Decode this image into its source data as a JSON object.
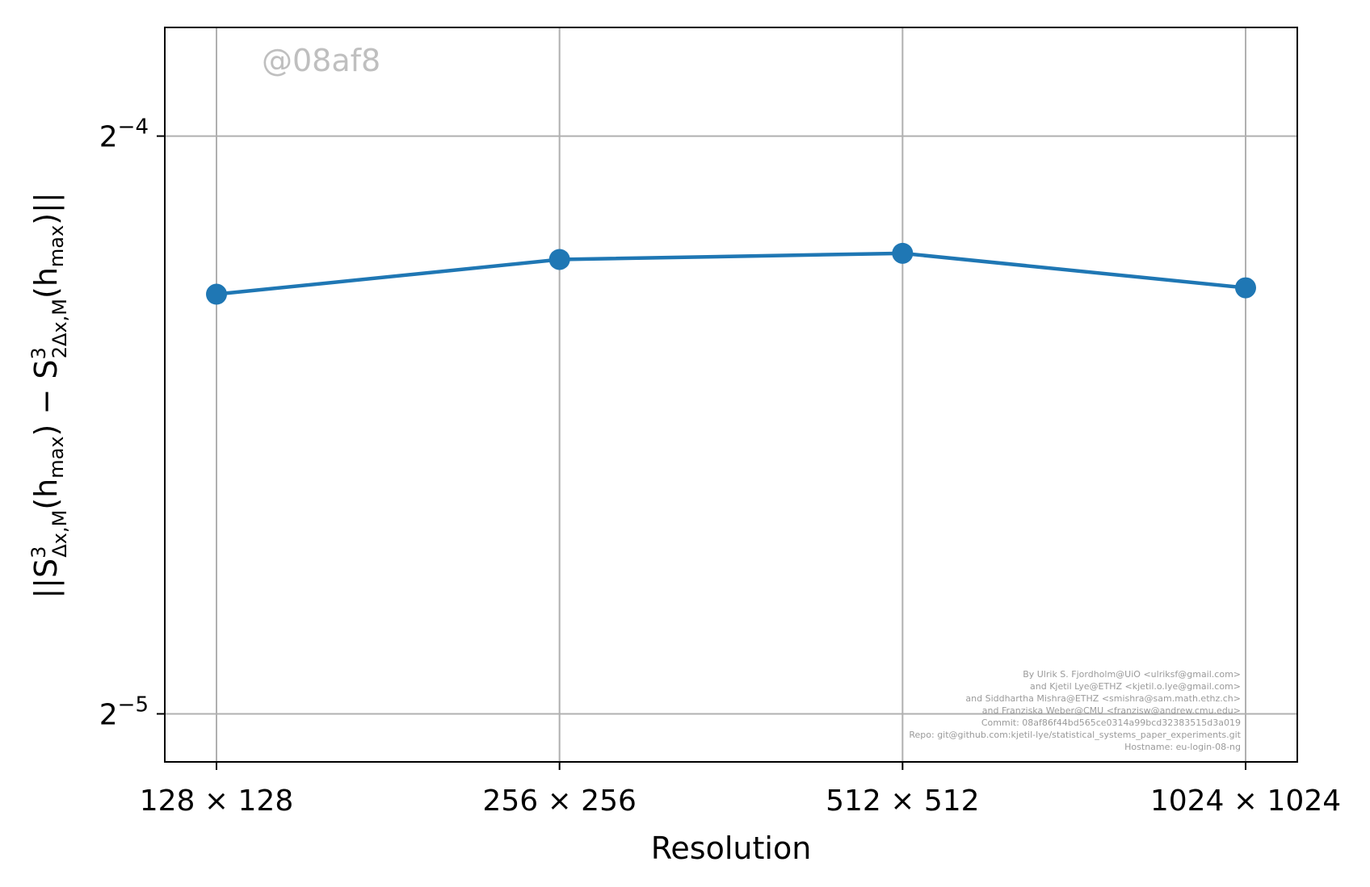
{
  "chart_data": {
    "type": "line",
    "title": "",
    "xlabel": "Resolution",
    "ylabel_parts": {
      "prefix": "||S",
      "sup1": "3",
      "sub1": "Δx,M",
      "mid1": "(h",
      "sub2": "max",
      "mid2": ") − S",
      "sup3": "3",
      "sub3": "2Δx,M",
      "mid3": "(h",
      "sub4": "max",
      "suffix": ")||"
    },
    "categories": [
      "128 × 128",
      "256 × 256",
      "512 × 512",
      "1024 × 1024"
    ],
    "series": [
      {
        "values": [
          0.0517,
          0.0539,
          0.0543,
          0.0521
        ],
        "color": "#1f77b4"
      }
    ],
    "yscale": "log2",
    "ylim": [
      0.0295,
      0.0712
    ],
    "yticks": [
      {
        "value": 0.0625,
        "base": "2",
        "exp": "−4"
      },
      {
        "value": 0.03125,
        "base": "2",
        "exp": "−5"
      }
    ],
    "grid": true,
    "watermark": "@08af8",
    "credits": [
      "By Ulrik S. Fjordholm@UiO <ulriksf@gmail.com>",
      "and Kjetil Lye@ETHZ <kjetil.o.lye@gmail.com>",
      "and Siddhartha Mishra@ETHZ <smishra@sam.math.ethz.ch>",
      "and Franziska Weber@CMU <franzisw@andrew.cmu.edu>",
      "Commit: 08af86f44bd565ce0314a99bcd32383515d3a019",
      "Repo: git@github.com:kjetil-lye/statistical_systems_paper_experiments.git",
      "Hostname: eu-login-08-ng"
    ]
  }
}
